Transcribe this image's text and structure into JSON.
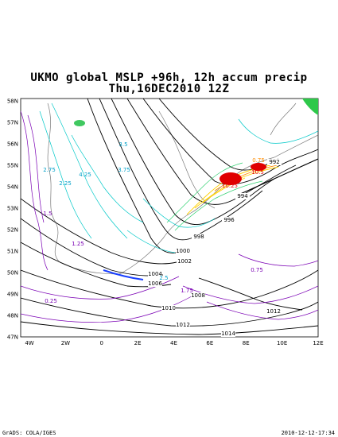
{
  "header": {
    "title_line1": "UKMO global MSLP +96h, 12h accum precip",
    "title_line2": "Thu,16DEC2010 12Z"
  },
  "axes": {
    "lon_labels": [
      "4W",
      "2W",
      "0",
      "2E",
      "4E",
      "6E",
      "8E",
      "10E",
      "12E"
    ],
    "lat_labels": [
      "58N",
      "57N",
      "56N",
      "55N",
      "54N",
      "53N",
      "52N",
      "51N",
      "50N",
      "49N",
      "48N",
      "47N"
    ]
  },
  "isobar_labels": [
    "992",
    "994",
    "996",
    "998",
    "1000",
    "1002",
    "1004",
    "1006",
    "1008",
    "1010",
    "1012",
    "1012",
    "1014"
  ],
  "precip_labels": [
    "10.5",
    "10.25",
    "0.75",
    "3.5",
    "2.75",
    "2.25",
    "1.5",
    "1.25",
    "0.25",
    "0.75",
    "1.75",
    "2.5",
    "4.25",
    "3.75"
  ],
  "footer": {
    "left": "GrADS: COLA/IGES",
    "right": "2010-12-12-17:34"
  },
  "colors": {
    "isobar": "#000000",
    "precip_low": "#7a00b4",
    "precip_mid": "#00c8c8",
    "precip_high": "#ffd000",
    "precip_max": "#e00000",
    "coast": "#7a7a7a"
  }
}
